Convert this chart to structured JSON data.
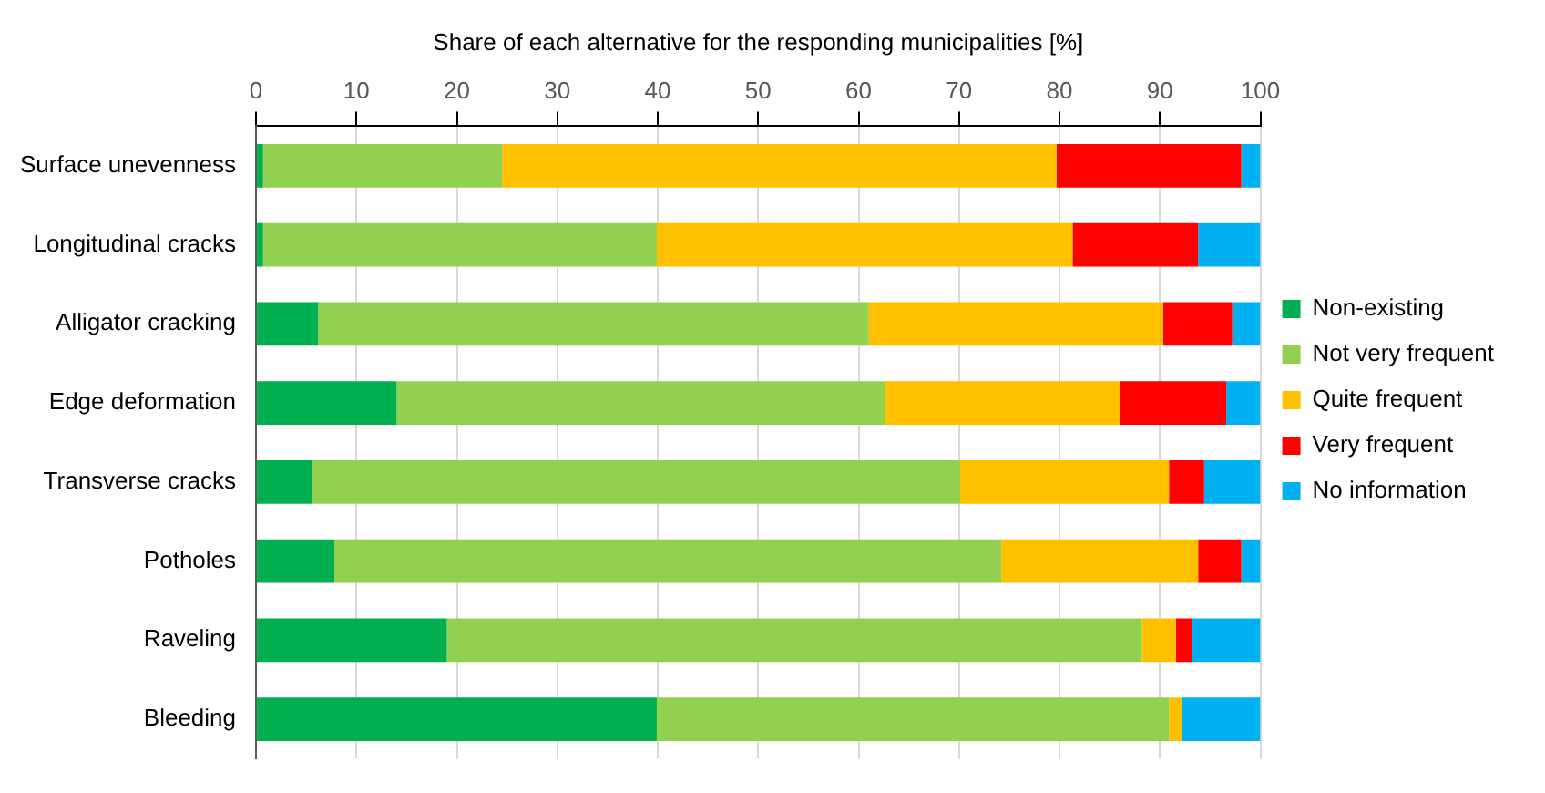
{
  "chart_data": {
    "type": "bar",
    "orientation": "horizontal",
    "stacked": true,
    "xlabel": "Share of each alternative for the responding municipalities [%]",
    "categories": [
      "Surface unevenness",
      "Longitudinal cracks",
      "Alligator cracking",
      "Edge deformation",
      "Transverse cracks",
      "Potholes",
      "Raveling",
      "Bleeding"
    ],
    "series": [
      {
        "name": "Non-existing",
        "color": "#00b050",
        "values": [
          0.7,
          0.7,
          6.2,
          14.0,
          5.6,
          7.8,
          19.0,
          39.9
        ]
      },
      {
        "name": "Not very frequent",
        "color": "#92d050",
        "values": [
          23.8,
          39.2,
          54.8,
          48.6,
          64.5,
          66.4,
          69.2,
          51.0
        ]
      },
      {
        "name": "Quite frequent",
        "color": "#ffc000",
        "values": [
          55.2,
          41.4,
          29.3,
          23.4,
          20.8,
          19.6,
          3.4,
          1.3
        ]
      },
      {
        "name": "Very frequent",
        "color": "#ff0000",
        "values": [
          18.4,
          12.5,
          6.9,
          10.6,
          3.5,
          4.3,
          1.6,
          0
        ]
      },
      {
        "name": "No information",
        "color": "#00b0f0",
        "values": [
          1.9,
          6.2,
          2.8,
          3.4,
          5.6,
          1.9,
          6.8,
          7.8
        ]
      }
    ],
    "xlim": [
      0,
      100
    ],
    "xticks": [
      0,
      10,
      20,
      30,
      40,
      50,
      60,
      70,
      80,
      90,
      100
    ],
    "grid": "x",
    "legend": "right"
  }
}
